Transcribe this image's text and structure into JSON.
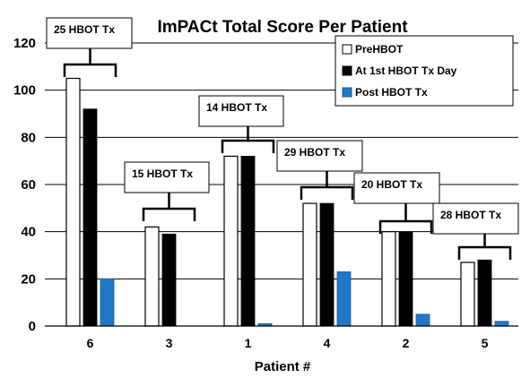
{
  "chart_data": {
    "type": "bar",
    "title": "ImPACt Total Score Per Patient",
    "xlabel": "Patient #",
    "ylabel": "",
    "ylim": [
      0,
      120
    ],
    "yticks": [
      0,
      20,
      40,
      60,
      80,
      100,
      120
    ],
    "grid": true,
    "legend_position": "top-right",
    "categories": [
      "6",
      "3",
      "1",
      "4",
      "2",
      "5"
    ],
    "series": [
      {
        "name": "PreHBOT",
        "color": "#ffffff",
        "values": [
          105,
          42,
          72,
          52,
          40,
          27
        ]
      },
      {
        "name": "At 1st HBOT Tx Day",
        "color": "#000000",
        "values": [
          92,
          39,
          72,
          52,
          40,
          28
        ]
      },
      {
        "name": "Post HBOT Tx",
        "color": "#1f78c8",
        "values": [
          20,
          0,
          1,
          23,
          5,
          2
        ]
      }
    ],
    "annotations": [
      "25 HBOT Tx",
      "15 HBOT Tx",
      "14 HBOT Tx",
      "29 HBOT Tx",
      "20 HBOT Tx",
      "28 HBOT Tx"
    ]
  }
}
